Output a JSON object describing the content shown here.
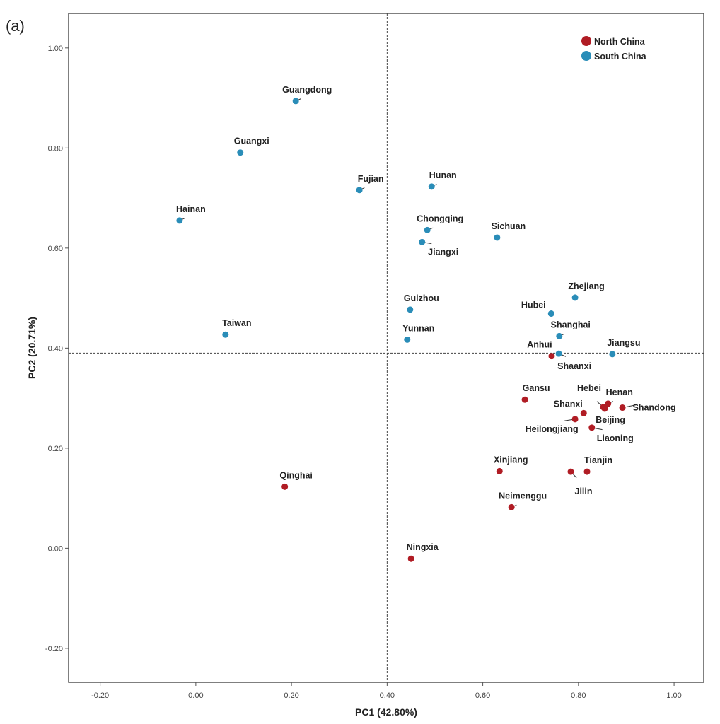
{
  "panel_label": "(a)",
  "chart_data": {
    "type": "scatter",
    "xlabel": "PC1 (42.80%)",
    "ylabel": "PC2 (20.71%)",
    "xlim": [
      -0.266,
      1.062
    ],
    "ylim": [
      -0.268,
      1.069
    ],
    "xticks": [
      "-0.20",
      "0.00",
      "0.20",
      "0.40",
      "0.60",
      "0.80",
      "1.00"
    ],
    "yticks": [
      "-0.20",
      "0.00",
      "0.20",
      "0.40",
      "0.60",
      "0.80",
      "1.00"
    ],
    "grid": false,
    "reference_lines": {
      "x": 0.4,
      "y": 0.39
    },
    "legend_position": "top-right",
    "series": [
      {
        "name": "North China",
        "color": "#b01c24",
        "points": [
          {
            "label": "Anhui",
            "x": 0.744,
            "y": 0.384
          },
          {
            "label": "Gansu",
            "x": 0.688,
            "y": 0.297
          },
          {
            "label": "Hebei",
            "x": 0.852,
            "y": 0.282
          },
          {
            "label": "Henan",
            "x": 0.862,
            "y": 0.289
          },
          {
            "label": "Shandong",
            "x": 0.892,
            "y": 0.281
          },
          {
            "label": "Shanxi",
            "x": 0.811,
            "y": 0.27
          },
          {
            "label": "Heilongjiang",
            "x": 0.793,
            "y": 0.258
          },
          {
            "label": "Beijing",
            "x": 0.855,
            "y": 0.279
          },
          {
            "label": "Liaoning",
            "x": 0.828,
            "y": 0.241
          },
          {
            "label": "Xinjiang",
            "x": 0.635,
            "y": 0.154
          },
          {
            "label": "Tianjin",
            "x": 0.818,
            "y": 0.153
          },
          {
            "label": "Jilin",
            "x": 0.784,
            "y": 0.153
          },
          {
            "label": "Qinghai",
            "x": 0.186,
            "y": 0.123
          },
          {
            "label": "Neimenggu",
            "x": 0.66,
            "y": 0.082
          },
          {
            "label": "Ningxia",
            "x": 0.45,
            "y": -0.021
          }
        ]
      },
      {
        "name": "South China",
        "color": "#2a8db8",
        "points": [
          {
            "label": "Guangdong",
            "x": 0.209,
            "y": 0.894
          },
          {
            "label": "Guangxi",
            "x": 0.093,
            "y": 0.791
          },
          {
            "label": "Fujian",
            "x": 0.342,
            "y": 0.716
          },
          {
            "label": "Hunan",
            "x": 0.493,
            "y": 0.723
          },
          {
            "label": "Hainan",
            "x": -0.034,
            "y": 0.655
          },
          {
            "label": "Chongqing",
            "x": 0.484,
            "y": 0.636
          },
          {
            "label": "Jiangxi",
            "x": 0.473,
            "y": 0.612
          },
          {
            "label": "Sichuan",
            "x": 0.63,
            "y": 0.621
          },
          {
            "label": "Zhejiang",
            "x": 0.793,
            "y": 0.501
          },
          {
            "label": "Hubei",
            "x": 0.743,
            "y": 0.469
          },
          {
            "label": "Guizhou",
            "x": 0.448,
            "y": 0.477
          },
          {
            "label": "Taiwan",
            "x": 0.062,
            "y": 0.427
          },
          {
            "label": "Yunnan",
            "x": 0.442,
            "y": 0.417
          },
          {
            "label": "Shanghai",
            "x": 0.76,
            "y": 0.424
          },
          {
            "label": "Jiangsu",
            "x": 0.871,
            "y": 0.388
          },
          {
            "label": "Shaanxi",
            "x": 0.759,
            "y": 0.389
          }
        ]
      }
    ]
  }
}
